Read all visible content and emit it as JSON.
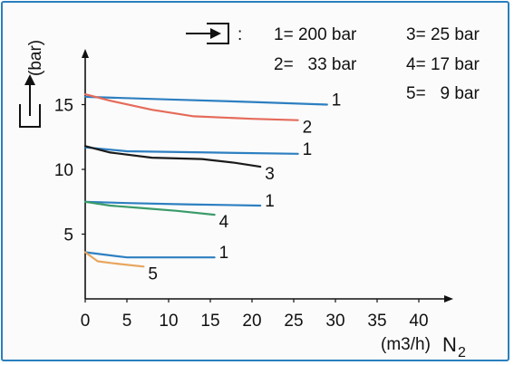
{
  "chart_data": {
    "type": "line",
    "ylabel": "(bar)",
    "xlabel_unit": "(m3/h)",
    "xlabel_gas": "N",
    "xlabel_sub": "2",
    "xlim": [
      0,
      45
    ],
    "ylim": [
      0,
      19
    ],
    "x_ticks": [
      0,
      5,
      10,
      15,
      20,
      25,
      30,
      35,
      40
    ],
    "y_ticks": [
      5,
      10,
      15
    ],
    "legend": {
      "separator": ":",
      "entries": [
        {
          "text": "1= 200 bar"
        },
        {
          "text": "3= 25 bar"
        },
        {
          "text": "2=   33 bar"
        },
        {
          "text": "4= 17 bar"
        },
        {
          "text": "5=   9 bar"
        }
      ]
    },
    "series": [
      {
        "label": "1",
        "color": "#2d7fc1",
        "points": [
          [
            0,
            15.6
          ],
          [
            10,
            15.4
          ],
          [
            20,
            15.2
          ],
          [
            29,
            15.0
          ]
        ]
      },
      {
        "label": "2",
        "color": "#e56b5a",
        "points": [
          [
            0,
            15.8
          ],
          [
            3,
            15.3
          ],
          [
            8,
            14.6
          ],
          [
            13,
            14.1
          ],
          [
            20,
            13.9
          ],
          [
            25.5,
            13.8
          ]
        ]
      },
      {
        "label": "1",
        "color": "#2d7fc1",
        "points": [
          [
            0,
            11.7
          ],
          [
            5,
            11.4
          ],
          [
            15,
            11.3
          ],
          [
            25.5,
            11.2
          ]
        ]
      },
      {
        "label": "3",
        "color": "#1b1b1b",
        "points": [
          [
            0,
            11.8
          ],
          [
            3,
            11.3
          ],
          [
            8,
            10.9
          ],
          [
            14,
            10.8
          ],
          [
            18,
            10.5
          ],
          [
            21,
            10.2
          ]
        ]
      },
      {
        "label": "1",
        "color": "#2d7fc1",
        "points": [
          [
            0,
            7.5
          ],
          [
            5,
            7.4
          ],
          [
            12,
            7.3
          ],
          [
            21,
            7.2
          ]
        ]
      },
      {
        "label": "4",
        "color": "#3a9b6a",
        "points": [
          [
            0,
            7.5
          ],
          [
            3,
            7.2
          ],
          [
            7,
            7.0
          ],
          [
            11,
            6.8
          ],
          [
            15.5,
            6.5
          ]
        ]
      },
      {
        "label": "1",
        "color": "#2d7fc1",
        "points": [
          [
            0,
            3.6
          ],
          [
            5,
            3.2
          ],
          [
            10,
            3.2
          ],
          [
            15.5,
            3.2
          ]
        ]
      },
      {
        "label": "5",
        "color": "#e8a65e",
        "points": [
          [
            0,
            3.6
          ],
          [
            1.5,
            2.9
          ],
          [
            4,
            2.7
          ],
          [
            7,
            2.5
          ]
        ]
      }
    ]
  }
}
